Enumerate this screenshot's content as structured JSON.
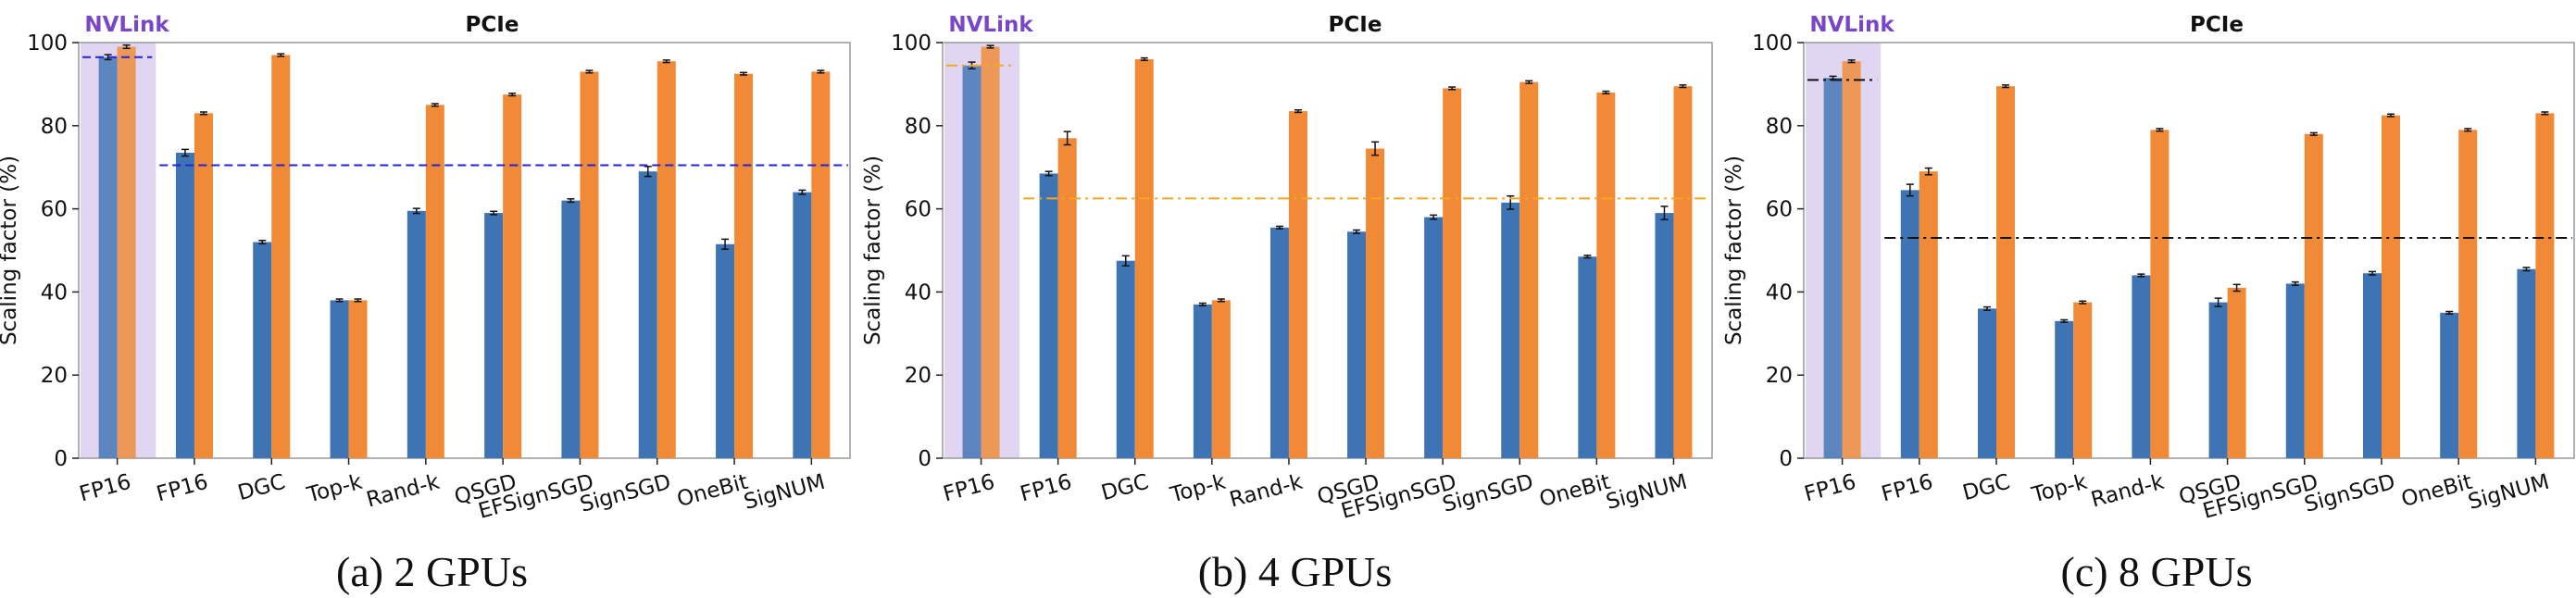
{
  "chart_data": [
    {
      "type": "bar",
      "caption": "(a) 2 GPUs",
      "ylabel": "Scaling factor (%)",
      "ylim": [
        0,
        100
      ],
      "yticks": [
        0,
        20,
        40,
        60,
        80,
        100
      ],
      "region_labels": {
        "nvlink": "NVLink",
        "pcie": "PCIe"
      },
      "categories": [
        "FP16",
        "FP16",
        "DGC",
        "Top-k",
        "Rand-k",
        "QSGD",
        "EFSignSGD",
        "SignSGD",
        "OneBit",
        "SigNUM"
      ],
      "series": [
        {
          "values": [
            96.5,
            73.5,
            52,
            38,
            59.5,
            59,
            62,
            69,
            51.5,
            64
          ],
          "errors": [
            0.6,
            0.8,
            0.4,
            0.3,
            0.6,
            0.4,
            0.4,
            1.2,
            1.2,
            0.5
          ]
        },
        {
          "values": [
            99,
            83,
            97,
            38,
            85,
            87.5,
            93,
            95.5,
            92.5,
            93
          ],
          "errors": [
            0.4,
            0.3,
            0.3,
            0.3,
            0.3,
            0.3,
            0.3,
            0.3,
            0.3,
            0.3
          ]
        }
      ],
      "reference_lines": [
        {
          "y": 96.5,
          "span": "nvlink",
          "style": "dashed",
          "color": "#2222dd"
        },
        {
          "y": 70.5,
          "span": "pcie",
          "style": "dashed",
          "color": "#2222dd"
        }
      ]
    },
    {
      "type": "bar",
      "caption": "(b) 4 GPUs",
      "ylabel": "Scaling factor (%)",
      "ylim": [
        0,
        100
      ],
      "yticks": [
        0,
        20,
        40,
        60,
        80,
        100
      ],
      "region_labels": {
        "nvlink": "NVLink",
        "pcie": "PCIe"
      },
      "categories": [
        "FP16",
        "FP16",
        "DGC",
        "Top-k",
        "Rand-k",
        "QSGD",
        "EFSignSGD",
        "SignSGD",
        "OneBit",
        "SigNUM"
      ],
      "series": [
        {
          "values": [
            94.5,
            68.5,
            47.5,
            37,
            55.5,
            54.5,
            58,
            61.5,
            48.5,
            59
          ],
          "errors": [
            0.8,
            0.5,
            1.2,
            0.3,
            0.3,
            0.4,
            0.5,
            1.6,
            0.3,
            1.6
          ]
        },
        {
          "values": [
            99,
            77,
            96,
            38,
            83.5,
            74.5,
            89,
            90.5,
            88,
            89.5
          ],
          "errors": [
            0.3,
            1.6,
            0.3,
            0.3,
            0.3,
            1.6,
            0.3,
            0.3,
            0.3,
            0.3
          ]
        }
      ],
      "reference_lines": [
        {
          "y": 94.5,
          "span": "nvlink",
          "style": "dashdot",
          "color": "#f5a623"
        },
        {
          "y": 62.5,
          "span": "pcie",
          "style": "dashdot",
          "color": "#f5a623"
        }
      ]
    },
    {
      "type": "bar",
      "caption": "(c) 8 GPUs",
      "ylabel": "Scaling factor (%)",
      "ylim": [
        0,
        100
      ],
      "yticks": [
        0,
        20,
        40,
        60,
        80,
        100
      ],
      "region_labels": {
        "nvlink": "NVLink",
        "pcie": "PCIe"
      },
      "categories": [
        "FP16",
        "FP16",
        "DGC",
        "Top-k",
        "Rand-k",
        "QSGD",
        "EFSignSGD",
        "SignSGD",
        "OneBit",
        "SigNUM"
      ],
      "series": [
        {
          "values": [
            91.5,
            64.5,
            36,
            33,
            44,
            37.5,
            42,
            44.5,
            35,
            45.5
          ],
          "errors": [
            0.4,
            1.4,
            0.4,
            0.3,
            0.3,
            1.0,
            0.4,
            0.4,
            0.3,
            0.4
          ]
        },
        {
          "values": [
            95.5,
            69,
            89.5,
            37.5,
            79,
            41,
            78,
            82.5,
            79,
            83
          ],
          "errors": [
            0.3,
            0.8,
            0.3,
            0.3,
            0.3,
            0.8,
            0.3,
            0.3,
            0.3,
            0.3
          ]
        }
      ],
      "reference_lines": [
        {
          "y": 91,
          "span": "nvlink",
          "style": "dashdot",
          "color": "#111111"
        },
        {
          "y": 53,
          "span": "pcie",
          "style": "dashdot",
          "color": "#111111"
        }
      ]
    }
  ],
  "colors": {
    "series_a": "#3e74b4",
    "series_b": "#f08a36",
    "nvlink_shade": "#e0d6f2",
    "nvlink_label": "#7a46c8",
    "axis": "#222222",
    "frame": "#999999"
  }
}
